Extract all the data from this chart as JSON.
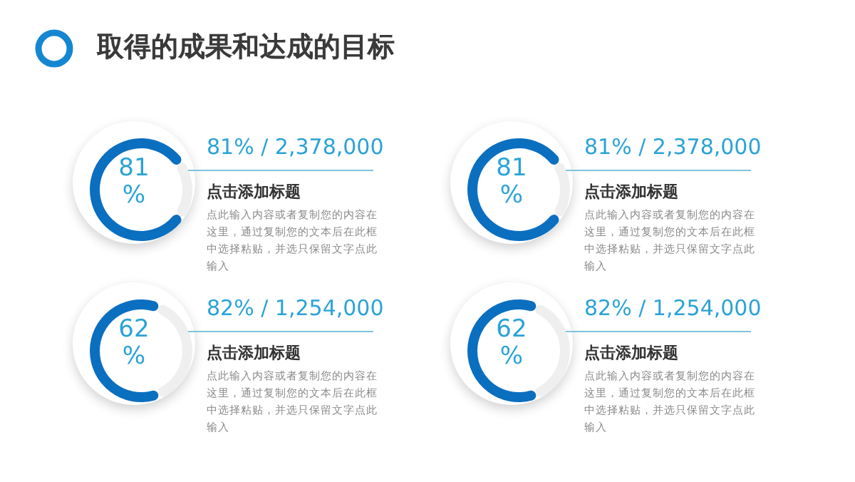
{
  "chart_data": [
    {
      "type": "donut",
      "title": "取得的成果和达成的目标",
      "categories": [
        null,
        null
      ],
      "values": [
        81,
        19
      ],
      "colors": [
        "#0b6fc0",
        "#efefef"
      ],
      "annotations": [
        "81%",
        "81% / 2,378,000",
        "点击添加标题",
        "点此输入内容或者复制您的内容在这里，通过复制您的文本后在此框中选择粘贴，并选只保留文字点此输入"
      ]
    },
    {
      "type": "donut",
      "categories": [
        null,
        null
      ],
      "values": [
        81,
        19
      ],
      "colors": [
        "#0b6fc0",
        "#efefef"
      ],
      "annotations": [
        "81%",
        "81% / 2,378,000",
        "点击添加标题",
        "点此输入内容或者复制您的内容在这里，通过复制您的文本后在此框中选择粘贴，并选只保留文字点此输入"
      ]
    },
    {
      "type": "donut",
      "categories": [
        null,
        null
      ],
      "values": [
        62,
        38
      ],
      "colors": [
        "#0b6fc0",
        "#efefef"
      ],
      "annotations": [
        "62%",
        "82% / 1,254,000",
        "点击添加标题",
        "点此输入内容或者复制您的内容在这里，通过复制您的文本后在此框中选择粘贴，并选只保留文字点此输入"
      ]
    },
    {
      "type": "donut",
      "categories": [
        null,
        null
      ],
      "values": [
        62,
        38
      ],
      "colors": [
        "#0b6fc0",
        "#efefef"
      ],
      "annotations": [
        "62%",
        "82% / 1,254,000",
        "点击添加标题",
        "点此输入内容或者复制您的内容在这里，通过复制您的文本后在此框中选择粘贴，并选只保留文字点此输入"
      ]
    }
  ]
}
